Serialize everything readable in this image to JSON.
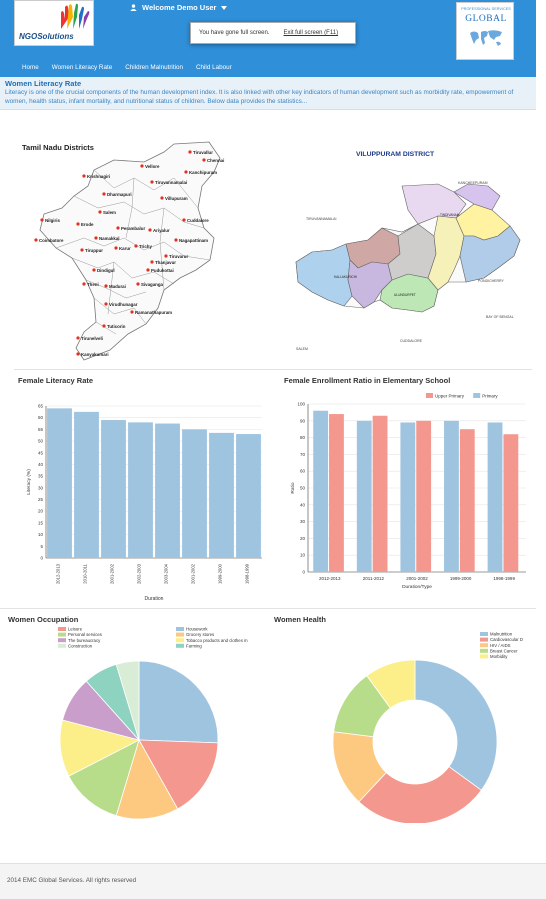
{
  "header": {
    "logo_text": "NGOSolutions",
    "welcome": "Welcome Demo User",
    "fullscreen_msg": "You have gone full screen.",
    "fullscreen_exit": "Exit full screen (F11)",
    "right_logo_top": "PROFESSIONAL SERVICES",
    "right_logo_main": "GLOBAL",
    "colors": {
      "bar": "#2f8fd8",
      "brand_text": "#1e6fb5"
    }
  },
  "nav": [
    "Home",
    "Women Literacy Rate",
    "Children Malnutrition",
    "Child Labour"
  ],
  "banner": {
    "title": "Women Literacy Rate",
    "text": "Literacy is one of the crucial components of the human development index. It is also linked with other key indicators of human development such as morbidity rate, empowerment of women, health status, infant mortality, and nutritional status of children. Below data provides the statistics..."
  },
  "maps": {
    "left": {
      "title": "Tamil Nadu Districts",
      "districts": [
        "Tiruvallur",
        "Chennai",
        "Vellore",
        "Kanchipuram",
        "Krishnagiri",
        "Tiruvannamalai",
        "Dharmapuri",
        "Villupuram",
        "Salem",
        "Cuddalore",
        "Nilgiris",
        "Erode",
        "Perambalur",
        "Ariyalur",
        "Namakkal",
        "Coimbatore",
        "Karur",
        "Trichy",
        "Nagapattinam",
        "Tiruppur",
        "Tiruvarur",
        "Thanjavur",
        "Dindigul",
        "Pudukottai",
        "Theni",
        "Madurai",
        "Sivaganga",
        "Virudhunagar",
        "Ramanathapuram",
        "Tuticorin",
        "Tirunelveli",
        "Kanyakumari"
      ]
    },
    "right": {
      "title": "VILUPPURAM DISTRICT",
      "labels": [
        "KANCHEEPURAM",
        "TIRUVANNAMALAI",
        "TINDIVANAM",
        "KALLAKURICHI",
        "ULUNDURPET",
        "PONDICHERRY",
        "BAY OF BENGAL",
        "CUDDALORE",
        "SALEM"
      ]
    }
  },
  "chart_data": [
    {
      "type": "bar",
      "title": "Female Literacy Rate",
      "xlabel": "Duration",
      "ylabel": "Literacy (%)",
      "ylim": [
        0,
        65
      ],
      "yticks": [
        0,
        5,
        10,
        15,
        20,
        25,
        30,
        35,
        40,
        45,
        50,
        55,
        60,
        65
      ],
      "categories": [
        "2012-2013",
        "2010-2011",
        "2001-2002",
        "2002-2003",
        "2003-2004",
        "2001-2002",
        "1999-2000",
        "1998-1999"
      ],
      "values": [
        64,
        62.5,
        59,
        58,
        57.5,
        55,
        53.5,
        53
      ],
      "color": "#9fc4e0",
      "grid": true
    },
    {
      "type": "bar",
      "title": "Female Enrollment Ratio in Elementary School",
      "xlabel": "Duration/Type",
      "ylabel": "Ratio",
      "ylim": [
        0,
        100
      ],
      "yticks": [
        0,
        10,
        20,
        30,
        40,
        50,
        60,
        70,
        80,
        90,
        100
      ],
      "categories": [
        "2012-2013",
        "2011-2012",
        "2001-2002",
        "1999-2000",
        "1998-1999"
      ],
      "legend": "top-right",
      "series": [
        {
          "name": "Primary",
          "values": [
            96,
            90,
            89,
            90,
            89
          ],
          "color": "#9fc4e0"
        },
        {
          "name": "Upper Primary",
          "values": [
            94,
            93,
            90,
            85,
            82
          ],
          "color": "#f4978e"
        }
      ],
      "grid": true
    },
    {
      "type": "pie",
      "title": "Women Occupation",
      "legend": "top",
      "slices": [
        {
          "label": "Housework",
          "value": 22,
          "color": "#9fc4e0"
        },
        {
          "label": "Leisure",
          "value": 14,
          "color": "#f4978e"
        },
        {
          "label": "Grocery stores",
          "value": 11,
          "color": "#fdc980"
        },
        {
          "label": "Personal services",
          "value": 11,
          "color": "#b8dd8a"
        },
        {
          "label": "Tobacco products and clothes m",
          "value": 10,
          "color": "#fcef8a"
        },
        {
          "label": "The bureaucracy",
          "value": 8,
          "color": "#c99ecb"
        },
        {
          "label": "Farming",
          "value": 6,
          "color": "#8ed2c0"
        },
        {
          "label": "Construction",
          "value": 4,
          "color": "#d8ecd6"
        }
      ],
      "legend_order": [
        [
          "Leisure",
          "Housework"
        ],
        [
          "Personal services",
          "Grocery stores"
        ],
        [
          "The bureaucracy",
          "Tobacco products and clothes m"
        ],
        [
          "Construction",
          "Farming"
        ]
      ]
    },
    {
      "type": "pie",
      "title": "Women Health",
      "legend": "top-right",
      "donut": true,
      "slices": [
        {
          "label": "Malnutrition",
          "value": 35,
          "color": "#9fc4e0"
        },
        {
          "label": "Cardiovascular D",
          "value": 27,
          "color": "#f4978e"
        },
        {
          "label": "HIV / AIDS",
          "value": 15,
          "color": "#fdc980"
        },
        {
          "label": "Breast Cancer",
          "value": 13,
          "color": "#b8dd8a"
        },
        {
          "label": "Morbidity",
          "value": 10,
          "color": "#fcef8a"
        }
      ]
    }
  ],
  "footer": "2014 EMC Global Services. All rights reserved"
}
